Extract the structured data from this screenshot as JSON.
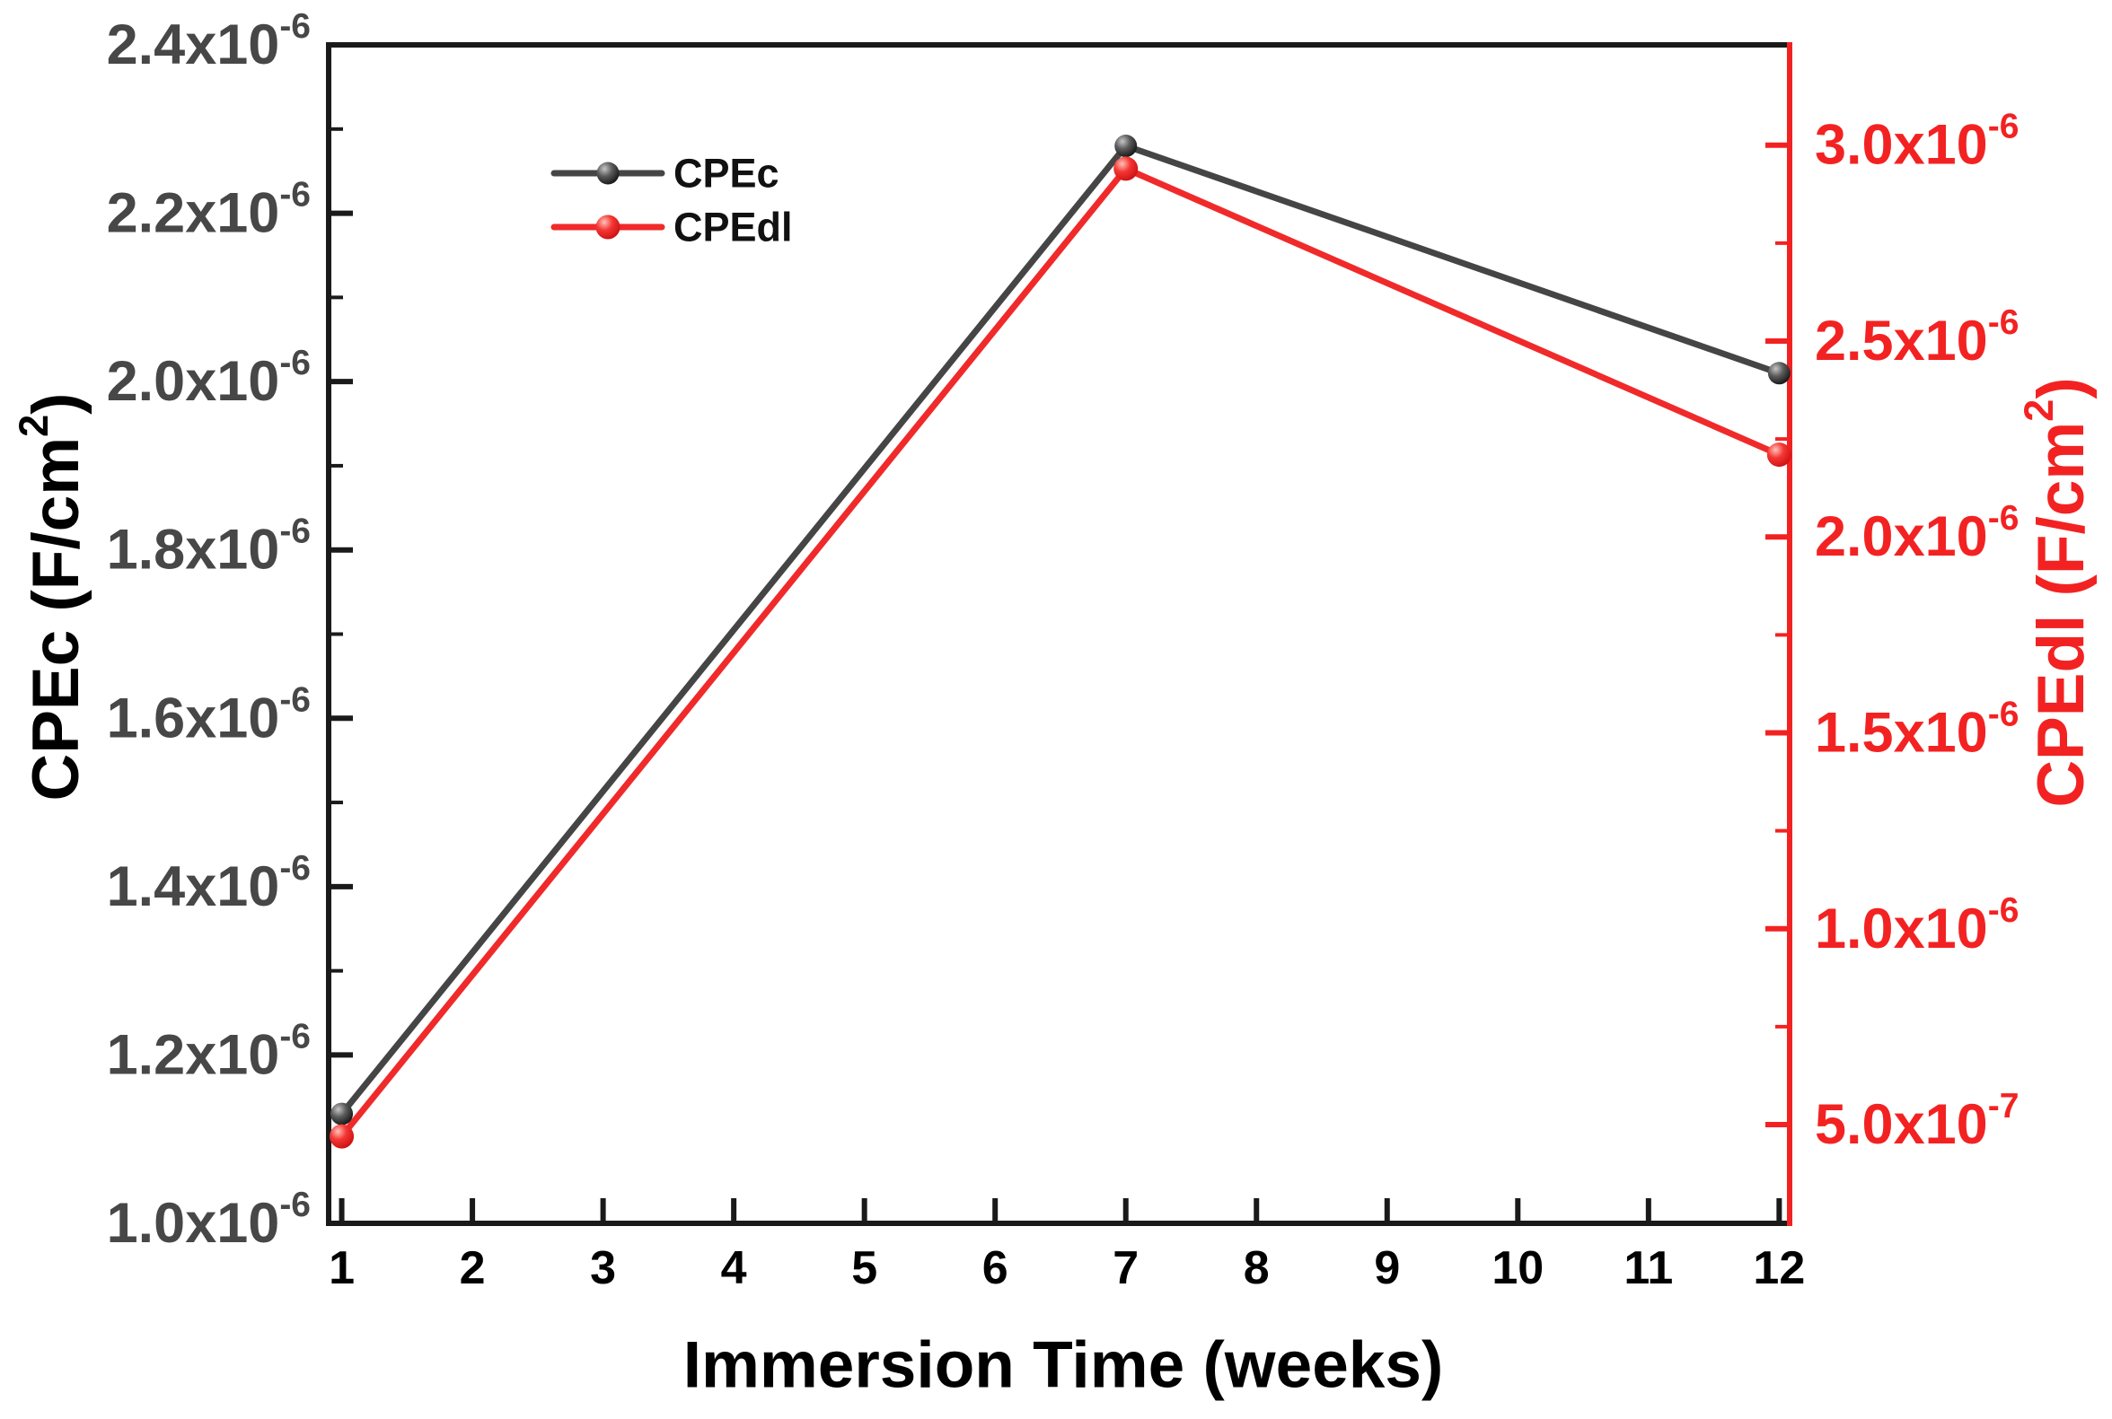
{
  "chart_data": {
    "type": "line",
    "title": "",
    "xlabel": "Immersion Time (weeks)",
    "background": "#ffffff",
    "grid": false,
    "frame_color": "#1a1a1a",
    "x_axis": {
      "lim": [
        0.9,
        12.08
      ],
      "tick_values": [
        1,
        2,
        3,
        4,
        5,
        6,
        7,
        8,
        9,
        10,
        11,
        12
      ],
      "tick_labels": [
        "1",
        "2",
        "3",
        "4",
        "5",
        "6",
        "7",
        "8",
        "9",
        "10",
        "11",
        "12"
      ],
      "tick_label_color": "#000000",
      "axis_color": "#1a1a1a",
      "label_color": "#000000"
    },
    "left_axis": {
      "label": "CPEc (F/cm^2)",
      "lim": [
        1e-06,
        2.4e-06
      ],
      "tick_values": [
        1e-06,
        1.2e-06,
        1.4e-06,
        1.6e-06,
        1.8e-06,
        2e-06,
        2.2e-06,
        2.4e-06
      ],
      "tick_labels": [
        "1.0x10^-6",
        "1.2x10^-6",
        "1.4x10^-6",
        "1.6x10^-6",
        "1.8x10^-6",
        "2.0x10^-6",
        "2.2x10^-6",
        "2.4x10^-6"
      ],
      "minor_tick_values": [
        1.1e-06,
        1.3e-06,
        1.5e-06,
        1.7e-06,
        1.9e-06,
        2.1e-06,
        2.3e-06
      ],
      "axis_color": "#1a1a1a",
      "tick_label_color": "#474747",
      "label_color": "#000000"
    },
    "right_axis": {
      "label": "CPEdl (F/cm^2)",
      "lim": [
        2.48e-07,
        3.256e-06
      ],
      "tick_values": [
        5e-07,
        1e-06,
        1.5e-06,
        2e-06,
        2.5e-06,
        3e-06
      ],
      "tick_labels": [
        "5.0x10^-7",
        "1.0x10^-6",
        "1.5x10^-6",
        "2.0x10^-6",
        "2.5x10^-6",
        "3.0x10^-6"
      ],
      "minor_tick_values": [
        7.5e-07,
        1.25e-06,
        1.75e-06,
        2.25e-06,
        2.75e-06
      ],
      "axis_color": "#f32222",
      "tick_label_color": "#f32222",
      "label_color": "#f32222"
    },
    "series": [
      {
        "name": "CPEc",
        "axis": "left",
        "color": "#454545",
        "marker": "ball",
        "marker_colors": [
          "#c6c6c6",
          "#5c5c5c",
          "#141414"
        ],
        "x": [
          1,
          7,
          12
        ],
        "values": [
          1.13e-06,
          2.28e-06,
          2.01e-06
        ]
      },
      {
        "name": "CPEdl",
        "axis": "right",
        "color": "#f02a2a",
        "marker": "ball",
        "marker_colors": [
          "#ffc2ba",
          "#f43733",
          "#cc0f12"
        ],
        "x": [
          1,
          7,
          12
        ],
        "values": [
          4.7e-07,
          2.94e-06,
          2.21e-06
        ]
      }
    ],
    "legend": {
      "items": [
        "CPEc",
        "CPEdl"
      ],
      "position": "upper-left-of-center",
      "text_color": "#111111"
    }
  }
}
